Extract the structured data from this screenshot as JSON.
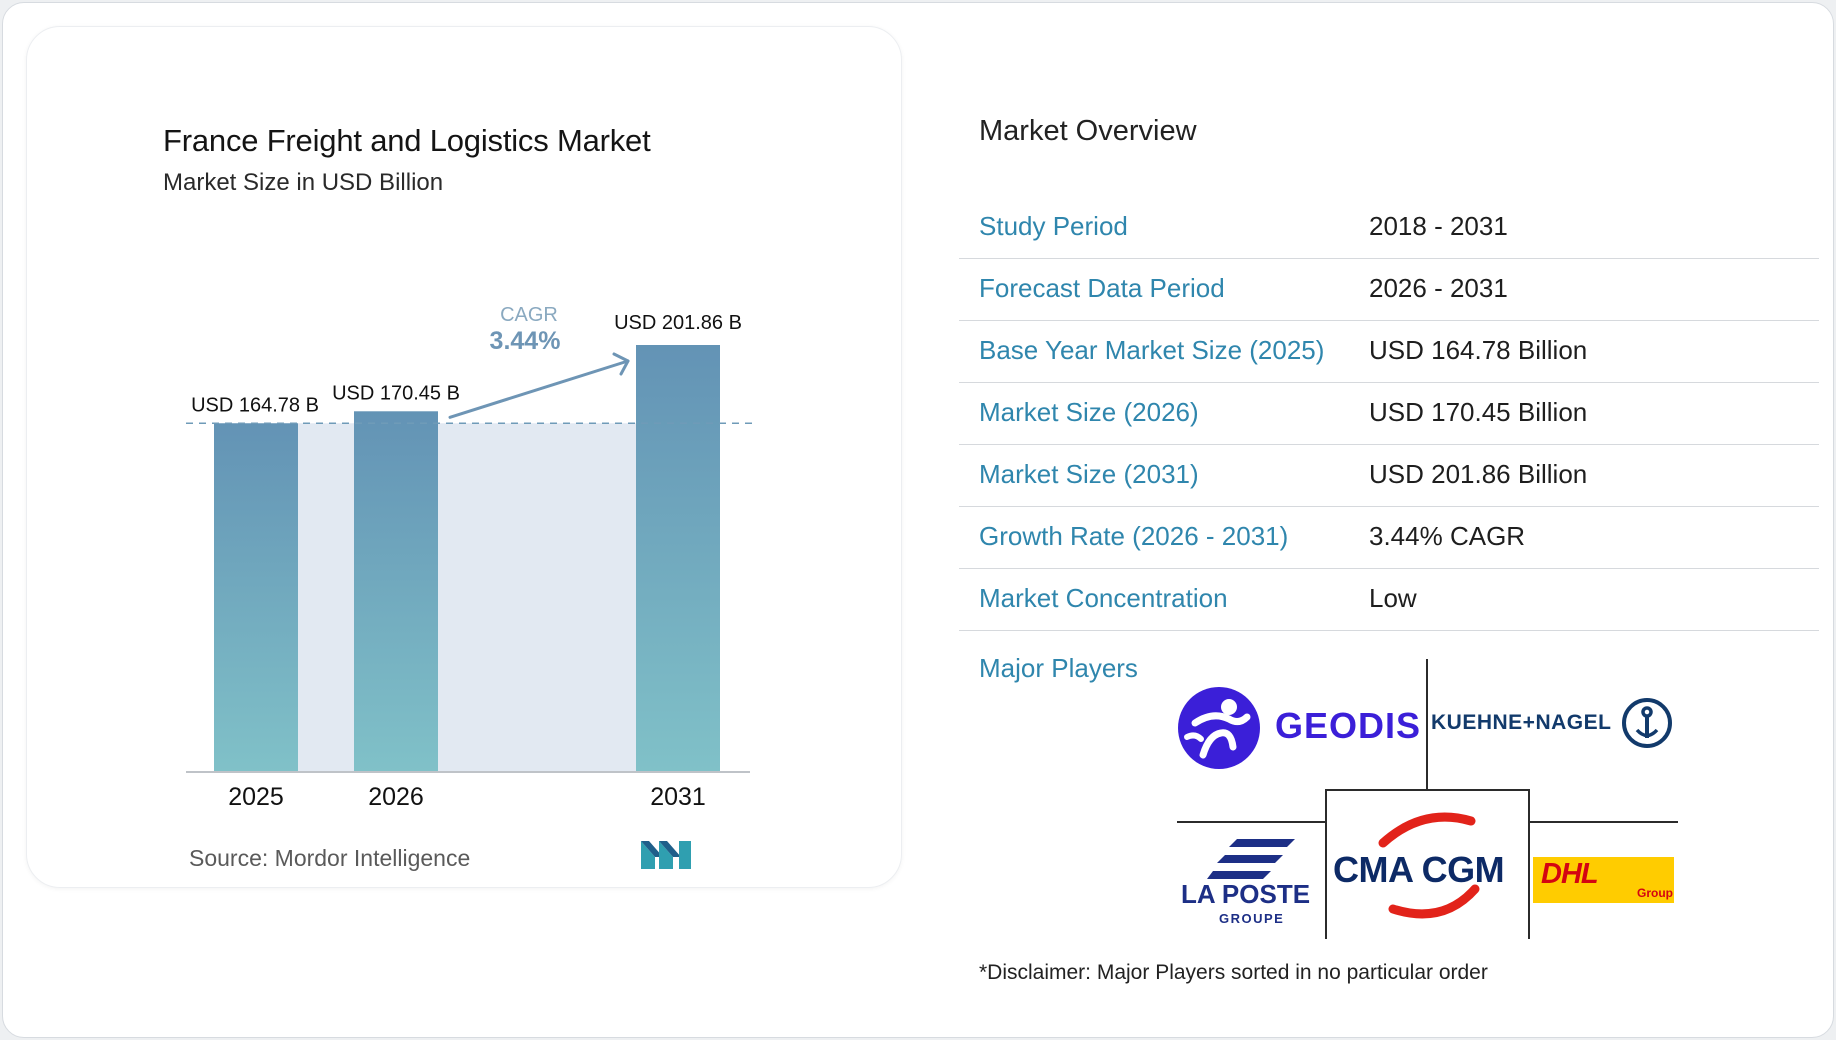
{
  "chart": {
    "title": "France Freight and Logistics Market",
    "subtitle": "Market Size in USD Billion",
    "source": "Source:  Mordor Intelligence",
    "cagr_label": "CAGR",
    "cagr_value": "3.44%"
  },
  "chart_data": {
    "type": "bar",
    "title": "France Freight and Logistics Market",
    "subtitle": "Market Size in USD Billion",
    "categories": [
      "2025",
      "2026",
      "2031"
    ],
    "values": [
      164.78,
      170.45,
      201.86
    ],
    "data_labels": [
      "USD 164.78 B",
      "USD 170.45 B",
      "USD 201.86 B"
    ],
    "annotation": {
      "text": "CAGR",
      "value": "3.44%",
      "from": "2026",
      "to": "2031"
    },
    "reference_line": {
      "value": 164.78,
      "style": "dashed"
    },
    "grid": false
  },
  "overview": {
    "title": "Market Overview",
    "rows": [
      {
        "label": "Study Period",
        "value": "2018 - 2031"
      },
      {
        "label": "Forecast Data Period",
        "value": "2026 - 2031"
      },
      {
        "label": "Base Year Market Size (2025)",
        "value": "USD 164.78 Billion"
      },
      {
        "label": "Market Size (2026)",
        "value": "USD 170.45 Billion"
      },
      {
        "label": "Market Size (2031)",
        "value": "USD 201.86 Billion"
      },
      {
        "label": "Growth Rate (2026 - 2031)",
        "value": "3.44% CAGR"
      },
      {
        "label": "Market Concentration",
        "value": "Low"
      }
    ],
    "players_label": "Major Players",
    "players": [
      "GEODIS",
      "KUEHNE+NAGEL",
      "LA POSTE",
      "GROUPE",
      "CMA CGM",
      "DHL",
      "Group"
    ],
    "disclaimer": "*Disclaimer: Major Players sorted in no particular order"
  },
  "colors": {
    "bar_top": "#6393b5",
    "bar_bottom": "#7fc0c8",
    "band": "#e2e9f2",
    "accent": "#2f86ad",
    "arrow": "#6e95b5"
  }
}
